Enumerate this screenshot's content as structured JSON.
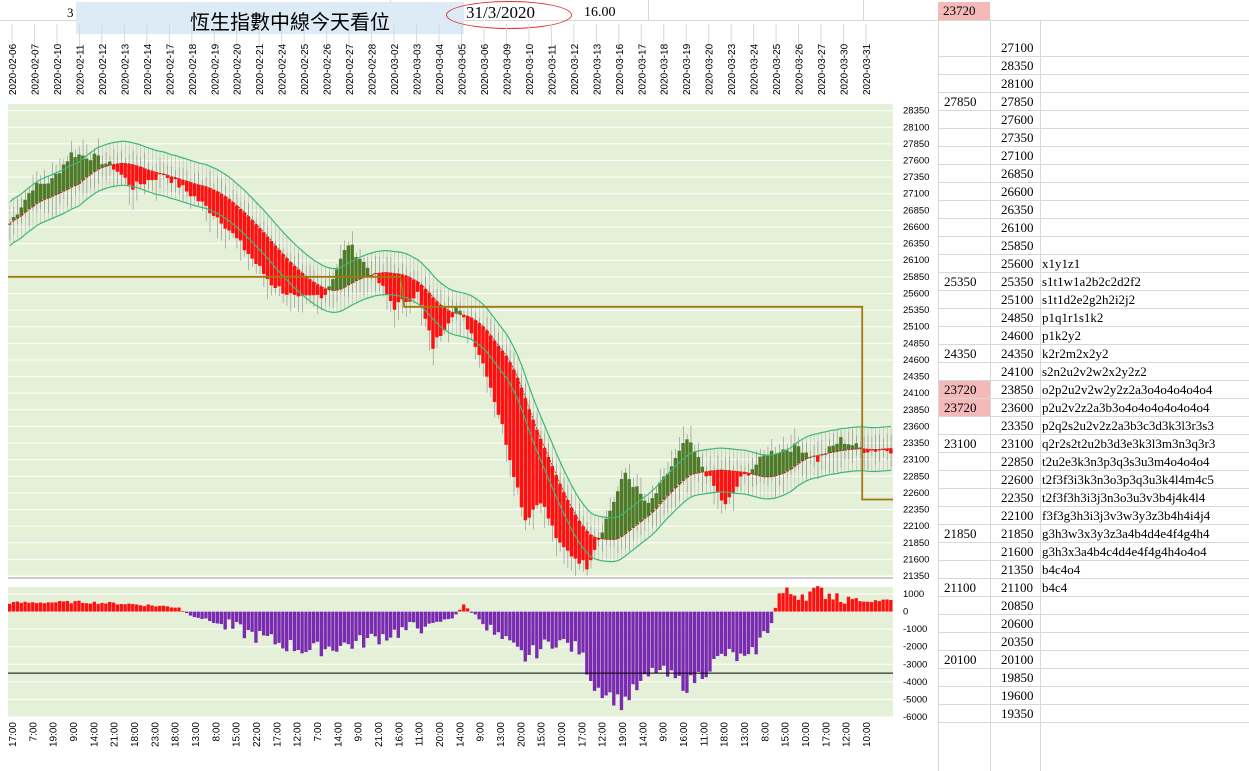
{
  "header": {
    "corner_num": "3",
    "title": "恆生指數中線今天看位",
    "date": "31/3/2020",
    "value": "16.00",
    "top_right": "23720"
  },
  "colors": {
    "up": "#4e7a2a",
    "down": "#ff1010",
    "band": "#3cb878",
    "mid": "#c02020",
    "level": "#a07810",
    "osc_up": "#ff1010",
    "osc_down": "#7a2ab0",
    "plot_bg": "#e5f0d8"
  },
  "date_labels": [
    "2020-02-06",
    "2020-02-07",
    "2020-02-10",
    "2020-02-11",
    "2020-02-12",
    "2020-02-13",
    "2020-02-14",
    "2020-02-17",
    "2020-02-18",
    "2020-02-19",
    "2020-02-20",
    "2020-02-21",
    "2020-02-24",
    "2020-02-25",
    "2020-02-26",
    "2020-02-27",
    "2020-02-28",
    "2020-03-02",
    "2020-03-03",
    "2020-03-04",
    "2020-03-05",
    "2020-03-06",
    "2020-03-09",
    "2020-03-10",
    "2020-03-11",
    "2020-03-12",
    "2020-03-13",
    "2020-03-16",
    "2020-03-17",
    "2020-03-18",
    "2020-03-19",
    "2020-03-20",
    "2020-03-23",
    "2020-03-24",
    "2020-03-25",
    "2020-03-26",
    "2020-03-27",
    "2020-03-30",
    "2020-03-31"
  ],
  "time_labels": [
    "17:00",
    "7:00",
    "19:00",
    "9:00",
    "14:00",
    "21:00",
    "18:00",
    "23:00",
    "18:00",
    "13:00",
    "8:00",
    "15:00",
    "22:00",
    "17:00",
    "12:00",
    "7:00",
    "14:00",
    "9:00",
    "21:00",
    "16:00",
    "11:00",
    "20:00",
    "14:00",
    "9:00",
    "13:00",
    "20:00",
    "15:00",
    "10:00",
    "17:00",
    "12:00",
    "19:00",
    "14:00",
    "9:00",
    "16:00",
    "11:00",
    "18:00",
    "13:00",
    "8:00",
    "15:00",
    "10:00",
    "17:00",
    "12:00",
    "10:00"
  ],
  "right_table": {
    "rows": [
      {
        "a": "",
        "b": "27100",
        "c": ""
      },
      {
        "a": "",
        "b": "28350",
        "c": ""
      },
      {
        "a": "",
        "b": "28100",
        "c": ""
      },
      {
        "a": "27850",
        "b": "27850",
        "c": ""
      },
      {
        "a": "",
        "b": "27600",
        "c": ""
      },
      {
        "a": "",
        "b": "27350",
        "c": ""
      },
      {
        "a": "",
        "b": "27100",
        "c": ""
      },
      {
        "a": "",
        "b": "26850",
        "c": ""
      },
      {
        "a": "",
        "b": "26600",
        "c": ""
      },
      {
        "a": "",
        "b": "26350",
        "c": ""
      },
      {
        "a": "",
        "b": "26100",
        "c": ""
      },
      {
        "a": "",
        "b": "25850",
        "c": ""
      },
      {
        "a": "",
        "b": "25600",
        "c": "x1y1z1"
      },
      {
        "a": "25350",
        "b": "25350",
        "c": "s1t1w1a2b2c2d2f2"
      },
      {
        "a": "",
        "b": "25100",
        "c": "s1t1d2e2g2h2i2j2"
      },
      {
        "a": "",
        "b": "24850",
        "c": "p1q1r1s1k2"
      },
      {
        "a": "",
        "b": "24600",
        "c": "p1k2y2"
      },
      {
        "a": "24350",
        "b": "24350",
        "c": "k2r2m2x2y2"
      },
      {
        "a": "",
        "b": "24100",
        "c": "s2n2u2v2w2x2y2z2"
      },
      {
        "a": "23720",
        "b": "23850",
        "c": "o2p2u2v2w2y2z2a3o4o4o4o4o4"
      },
      {
        "a": "23720",
        "b": "23600",
        "c": "p2u2v2z2a3b3o4o4o4o4o4o4o4"
      },
      {
        "a": "",
        "b": "23350",
        "c": "p2q2s2u2v2z2a3b3c3d3k3l3r3s3"
      },
      {
        "a": "23100",
        "b": "23100",
        "c": "q2r2s2t2u2b3d3e3k3l3m3n3q3r3"
      },
      {
        "a": "",
        "b": "22850",
        "c": "t2u2e3k3n3p3q3s3u3m4o4o4o4"
      },
      {
        "a": "",
        "b": "22600",
        "c": "t2f3f3i3k3n3o3p3q3u3k4l4m4c5"
      },
      {
        "a": "",
        "b": "22350",
        "c": "t2f3f3h3i3j3n3o3u3v3b4j4k4l4"
      },
      {
        "a": "",
        "b": "22100",
        "c": "f3f3g3h3i3j3v3w3y3z3b4h4i4j4"
      },
      {
        "a": "21850",
        "b": "21850",
        "c": "g3h3w3x3y3z3a4b4d4e4f4g4h4"
      },
      {
        "a": "",
        "b": "21600",
        "c": "g3h3x3a4b4c4d4e4f4g4h4o4o4"
      },
      {
        "a": "",
        "b": "21350",
        "c": "b4c4o4"
      },
      {
        "a": "21100",
        "b": "21100",
        "c": "b4c4"
      },
      {
        "a": "",
        "b": "20850",
        "c": ""
      },
      {
        "a": "",
        "b": "20600",
        "c": ""
      },
      {
        "a": "",
        "b": "20350",
        "c": ""
      },
      {
        "a": "20100",
        "b": "20100",
        "c": ""
      },
      {
        "a": "",
        "b": "19850",
        "c": ""
      },
      {
        "a": "",
        "b": "19600",
        "c": ""
      },
      {
        "a": "",
        "b": "19350",
        "c": ""
      }
    ]
  },
  "chart_data": [
    {
      "type": "bar",
      "panel": "price",
      "ylim": [
        21350,
        28450
      ],
      "yticks": [
        28350,
        28100,
        27850,
        27600,
        27350,
        27100,
        26850,
        26600,
        26350,
        26100,
        25850,
        25600,
        25350,
        25100,
        24850,
        24600,
        24350,
        24100,
        23850,
        23600,
        23350,
        23100,
        22850,
        22600,
        22350,
        22100,
        21850,
        21600,
        21350
      ],
      "anchors": [
        [
          0,
          26650
        ],
        [
          6,
          27200
        ],
        [
          11,
          27300
        ],
        [
          16,
          27700
        ],
        [
          22,
          27650
        ],
        [
          27,
          27500
        ],
        [
          32,
          27200
        ],
        [
          40,
          27400
        ],
        [
          48,
          27050
        ],
        [
          55,
          26700
        ],
        [
          62,
          26200
        ],
        [
          68,
          25750
        ],
        [
          75,
          25500
        ],
        [
          82,
          25600
        ],
        [
          88,
          26350
        ],
        [
          95,
          25850
        ],
        [
          100,
          25400
        ],
        [
          106,
          25600
        ],
        [
          110,
          24800
        ],
        [
          116,
          25400
        ],
        [
          120,
          25000
        ],
        [
          124,
          24400
        ],
        [
          128,
          23600
        ],
        [
          134,
          22200
        ],
        [
          138,
          22500
        ],
        [
          143,
          21800
        ],
        [
          150,
          21500
        ],
        [
          155,
          22200
        ],
        [
          160,
          22900
        ],
        [
          166,
          22400
        ],
        [
          172,
          23000
        ],
        [
          176,
          23400
        ],
        [
          180,
          23000
        ],
        [
          186,
          22400
        ],
        [
          190,
          22800
        ],
        [
          197,
          23200
        ],
        [
          205,
          23300
        ],
        [
          210,
          23100
        ],
        [
          216,
          23400
        ],
        [
          222,
          23250
        ]
      ],
      "level_line": [
        {
          "from": 0,
          "to": 101,
          "y": 25850
        },
        {
          "from": 103,
          "to": 221,
          "y": 25400
        },
        {
          "from": 222,
          "to": 229,
          "y": 22500
        }
      ]
    },
    {
      "type": "bar",
      "panel": "oscillator",
      "ylim": [
        -6000,
        1400
      ],
      "yticks": [
        1000,
        0,
        -1000,
        -2000,
        -3000,
        -4000,
        -5000,
        -6000
      ],
      "reference_line": -3500,
      "anchors": [
        [
          0,
          500
        ],
        [
          18,
          550
        ],
        [
          30,
          450
        ],
        [
          44,
          250
        ],
        [
          46,
          -100
        ],
        [
          60,
          -1100
        ],
        [
          70,
          -1800
        ],
        [
          78,
          -2200
        ],
        [
          90,
          -1800
        ],
        [
          100,
          -1200
        ],
        [
          110,
          -700
        ],
        [
          115,
          -350
        ],
        [
          118,
          350
        ],
        [
          121,
          -200
        ],
        [
          126,
          -1300
        ],
        [
          134,
          -2600
        ],
        [
          142,
          -1600
        ],
        [
          148,
          -2200
        ],
        [
          152,
          -4200
        ],
        [
          159,
          -5200
        ],
        [
          168,
          -3300
        ],
        [
          176,
          -4200
        ],
        [
          186,
          -2400
        ],
        [
          192,
          -2800
        ],
        [
          198,
          -600
        ],
        [
          200,
          1000
        ],
        [
          212,
          1100
        ],
        [
          222,
          600
        ],
        [
          229,
          650
        ]
      ]
    }
  ]
}
